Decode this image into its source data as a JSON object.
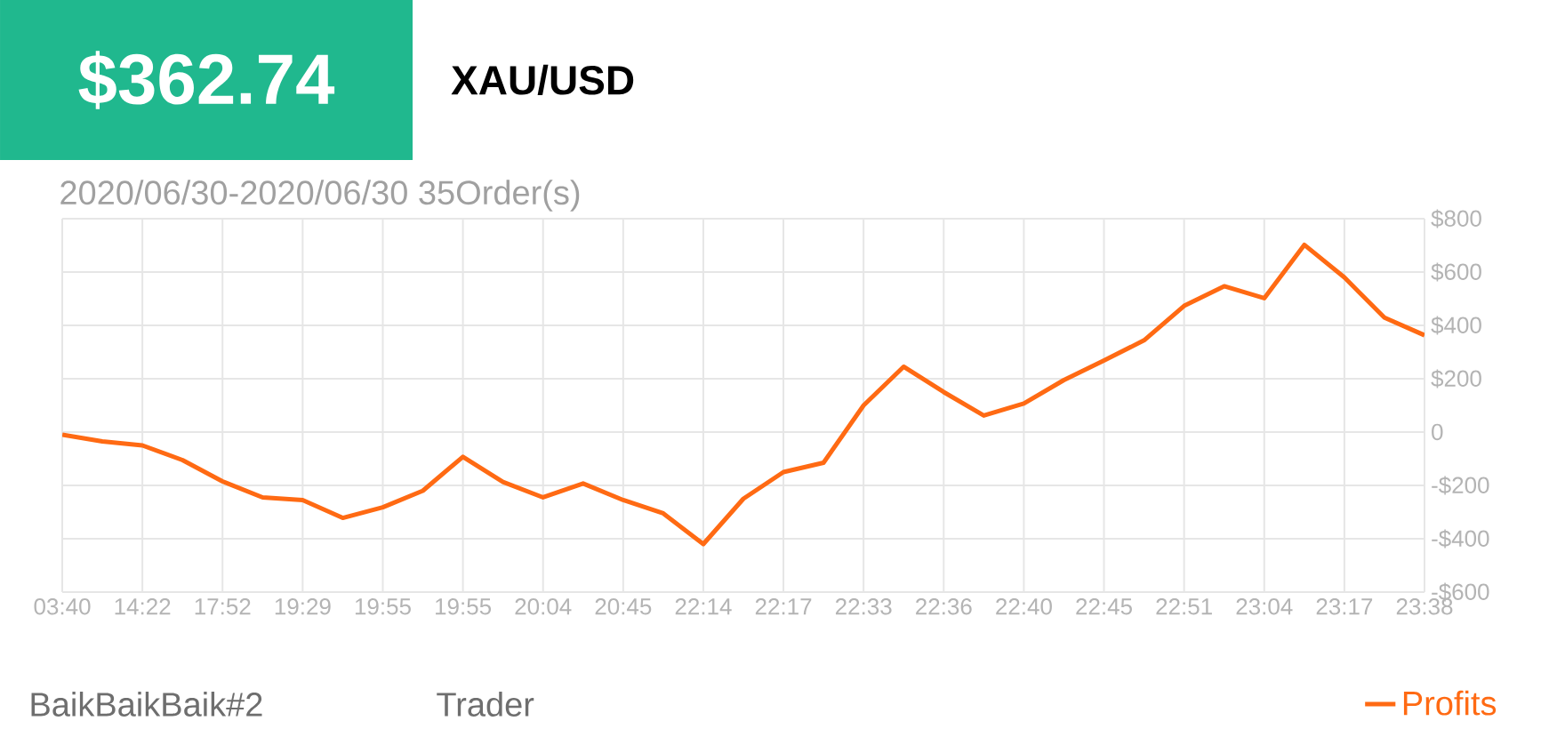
{
  "chart_data": {
    "type": "line",
    "title": "$362.74",
    "subtitle": "XAU/USD",
    "annotations": [
      "2020/06/30-2020/06/30 35Order(s)",
      "BaikBaikBaik#2",
      "Trader"
    ],
    "categories": [
      "03:40",
      null,
      "14:22",
      null,
      "17:52",
      null,
      "19:29",
      null,
      "19:55",
      null,
      "19:55",
      null,
      "20:04",
      null,
      "20:45",
      null,
      "22:14",
      null,
      "22:17",
      null,
      "22:33",
      null,
      "22:36",
      null,
      "22:40",
      null,
      "22:45",
      null,
      "22:51",
      null,
      "23:04",
      null,
      "23:17",
      null,
      "23:38"
    ],
    "series": [
      {
        "name": "Profits",
        "color": "#ff6a13",
        "values": [
          -10,
          -35,
          -50,
          -105,
          -185,
          -245,
          -255,
          -322,
          -282,
          -220,
          -93,
          -187,
          -245,
          -193,
          -255,
          -305,
          -420,
          -250,
          -150,
          -115,
          100,
          245,
          150,
          62,
          107,
          195,
          268,
          344,
          473,
          547,
          502,
          702,
          580,
          429,
          363
        ]
      }
    ],
    "ylim": [
      -600,
      800
    ],
    "yticks": [
      {
        "value": -600,
        "label": "-$600"
      },
      {
        "value": -400,
        "label": "-$400"
      },
      {
        "value": -200,
        "label": "-$200"
      },
      0,
      {
        "value": 200,
        "label": "$200"
      },
      {
        "value": 400,
        "label": "$400"
      },
      {
        "value": 600,
        "label": "$600"
      },
      {
        "value": 800,
        "label": "$800"
      }
    ],
    "grid": true,
    "legend": "bottom right"
  }
}
